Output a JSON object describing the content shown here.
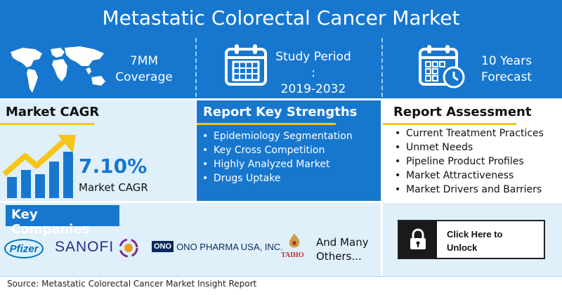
{
  "title": "Metastatic Colorectal Cancer Market",
  "coverage": {
    "line1": "7MM",
    "line2": "Coverage"
  },
  "study_period": {
    "line1": "Study Period :",
    "line2": "2019-2032"
  },
  "forecast": {
    "line1": "10 Years",
    "line2": "Forecast"
  },
  "market_cagr": {
    "heading": "Market  CAGR",
    "value": "7.10%",
    "label": "Market CAGR"
  },
  "strengths": {
    "heading": "Report Key Strengths",
    "items": [
      "Epidemiology Segmentation",
      "Key Cross Competition",
      "Highly Analyzed Market",
      "Drugs Uptake"
    ]
  },
  "assessment": {
    "heading": "Report Assessment",
    "items": [
      "Current Treatment Practices",
      "Unmet Needs",
      "Pipeline Product Profiles",
      "Market Attractiveness",
      "Market Drivers and Barriers"
    ]
  },
  "companies": {
    "heading": "Key Companies",
    "pfizer": "Pfizer",
    "sanofi": "SANOFI",
    "ono_mark": "ONO",
    "ono": "ONO PHARMA USA, INC.",
    "taiho": "TAIHO",
    "others_line1": "And Many",
    "others_line2": "Others..."
  },
  "unlock": {
    "line1": "Click Here to",
    "line2": "Unlock"
  },
  "source": "Source: Metastatic Colorectal Cancer Market Insight Report",
  "colors": {
    "primary_blue": "#1777cf",
    "light_blue": "#dff0fb",
    "accent_yellow": "#f6c518"
  }
}
